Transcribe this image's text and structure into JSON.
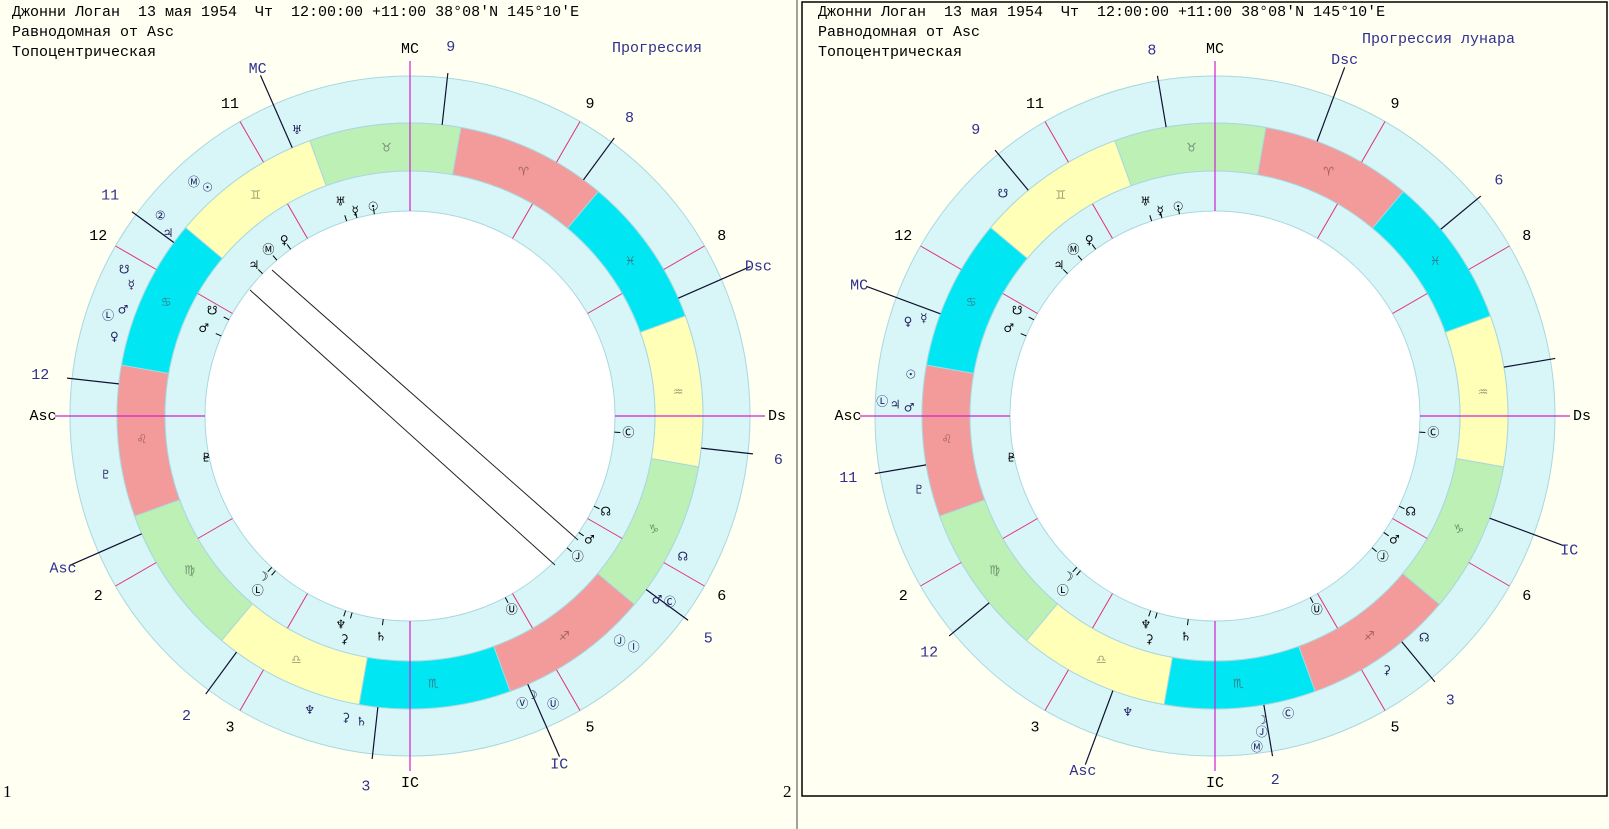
{
  "panels": [
    {
      "number": "1",
      "header": [
        "Джонни Логан  13 мая 1954  Чт  12:00:00 +11:00 38°08'N 145°10'E",
        "Равнодомная от Asc",
        "Топоцентрическая"
      ],
      "mode": "Прогрессия",
      "signs": [
        "♈",
        "♉",
        "♊",
        "♋",
        "♌",
        "♍",
        "♎",
        "♏",
        "♐",
        "♑",
        "♒",
        "♓"
      ],
      "axes": [
        "MC",
        "IC",
        "Asc",
        "Ds"
      ],
      "angle_labels": [
        "MC",
        "Dsc",
        "Asc",
        "IC"
      ],
      "house_numbers": [
        "11",
        "9",
        "8",
        "6",
        "5",
        "3",
        "2",
        "12"
      ],
      "outer_house_numbers": [
        "9",
        "8",
        "6",
        "5",
        "3",
        "2",
        "12",
        "11"
      ],
      "inner_planets": [
        "☉",
        "☿",
        "♅",
        "♀",
        "Ⓜ",
        "♃",
        "☋",
        "♂",
        "♇",
        "☽",
        "Ⓛ",
        "♆",
        "⚳",
        "♄",
        "Ⓤ",
        "Ⓙ",
        "♂",
        "☊",
        "Ⓒ"
      ],
      "outer_planets": [
        "♅",
        "Ⓜ",
        "☉",
        "②",
        "♃",
        "☋",
        "☿",
        "Ⓛ",
        "♂",
        "♀",
        "♇",
        "♆",
        "⚳",
        "♄",
        "Ⓥ",
        "☽",
        "Ⓤ",
        "Ⓙ",
        "Ⓘ",
        "♂",
        "Ⓒ",
        "☊"
      ]
    },
    {
      "number": "2",
      "header": [
        "Джонни Логан  13 мая 1954  Чт  12:00:00 +11:00 38°08'N 145°10'E",
        "Равнодомная от Asc",
        "Топоцентрическая"
      ],
      "mode": "Прогрессия лунара",
      "signs": [
        "♈",
        "♉",
        "♊",
        "♋",
        "♌",
        "♍",
        "♎",
        "♏",
        "♐",
        "♑",
        "♒",
        "♓"
      ],
      "axes": [
        "MC",
        "IC",
        "Asc",
        "Ds"
      ],
      "angle_labels": [
        "Dsc",
        "MC",
        "Asc",
        "IC"
      ],
      "house_numbers": [
        "11",
        "9",
        "8",
        "6",
        "5",
        "3",
        "2",
        "12"
      ],
      "outer_house_numbers": [
        "8",
        "9",
        "12",
        "11",
        "6",
        "3",
        "2"
      ],
      "inner_planets": [
        "☉",
        "☿",
        "♅",
        "♀",
        "Ⓜ",
        "♃",
        "☋",
        "♂",
        "♇",
        "☽",
        "Ⓛ",
        "♆",
        "⚳",
        "♄",
        "Ⓤ",
        "Ⓙ",
        "♂",
        "☊",
        "Ⓒ"
      ],
      "outer_planets": [
        "☋",
        "♀",
        "☿",
        "☉",
        "Ⓛ",
        "♃",
        "♂",
        "♇",
        "☊",
        "⚳",
        "♆",
        "Ⓒ",
        "☽",
        "Ⓙ",
        "Ⓜ"
      ]
    }
  ]
}
